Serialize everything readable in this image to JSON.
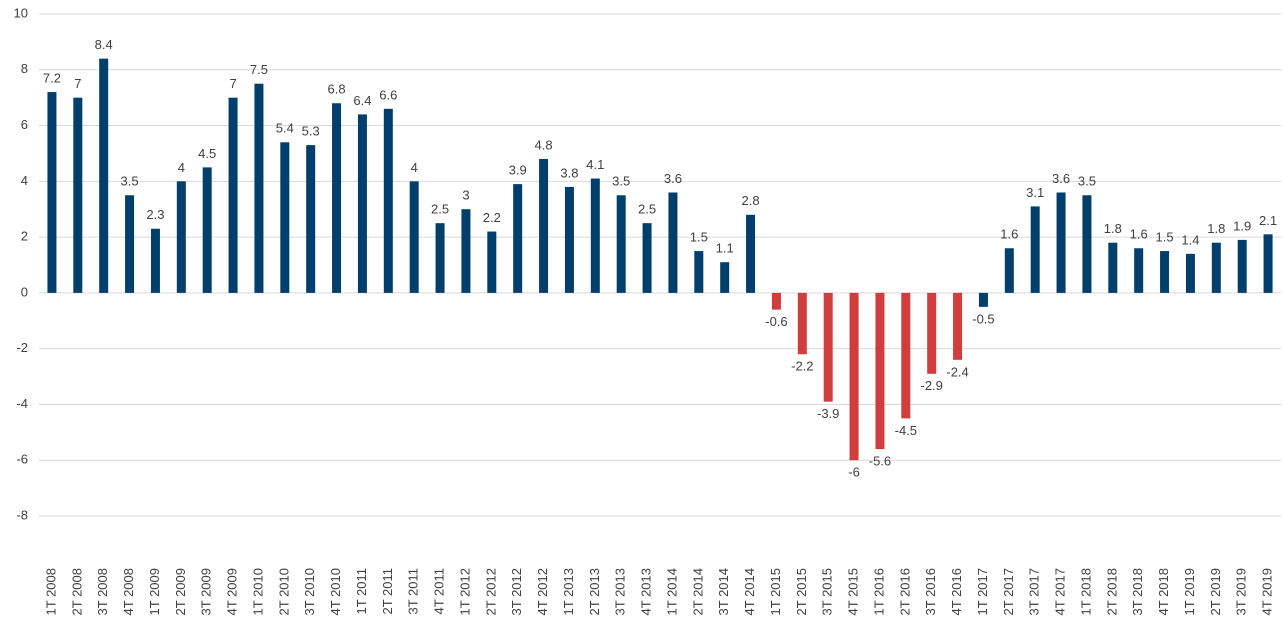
{
  "chart_data": {
    "type": "bar",
    "categories": [
      "1T 2008",
      "2T 2008",
      "3T 2008",
      "4T 2008",
      "1T 2009",
      "2T 2009",
      "3T 2009",
      "4T 2009",
      "1T 2010",
      "2T 2010",
      "3T 2010",
      "4T 2010",
      "1T 2011",
      "2T 2011",
      "3T 2011",
      "4T 2011",
      "1T 2012",
      "2T 2012",
      "3T 2012",
      "4T 2012",
      "1T 2013",
      "2T 2013",
      "3T 2013",
      "4T 2013",
      "1T 2014",
      "2T 2014",
      "3T 2014",
      "4T 2014",
      "1T 2015",
      "2T 2015",
      "3T 2015",
      "4T 2015",
      "1T 2016",
      "2T 2016",
      "3T 2016",
      "4T 2016",
      "1T 2017",
      "2T 2017",
      "3T 2017",
      "4T 2017",
      "1T 2018",
      "2T 2018",
      "3T 2018",
      "4T 2018",
      "1T 2019",
      "2T 2019",
      "3T 2019",
      "4T 2019"
    ],
    "values": [
      7.2,
      7,
      8.4,
      3.5,
      2.3,
      4,
      4.5,
      7,
      7.5,
      5.4,
      5.3,
      6.8,
      6.4,
      6.6,
      4,
      2.5,
      3,
      2.2,
      3.9,
      4.8,
      3.8,
      4.1,
      3.5,
      2.5,
      3.6,
      1.5,
      1.1,
      2.8,
      -0.6,
      -2.2,
      -3.9,
      -6,
      -5.6,
      -4.5,
      -2.9,
      -2.4,
      -0.5,
      1.6,
      3.1,
      3.6,
      3.5,
      1.8,
      1.6,
      1.5,
      1.4,
      1.8,
      1.9,
      2.1
    ],
    "colors": [
      "#003f6b",
      "#003f6b",
      "#003f6b",
      "#003f6b",
      "#003f6b",
      "#003f6b",
      "#003f6b",
      "#003f6b",
      "#003f6b",
      "#003f6b",
      "#003f6b",
      "#003f6b",
      "#003f6b",
      "#003f6b",
      "#003f6b",
      "#003f6b",
      "#003f6b",
      "#003f6b",
      "#003f6b",
      "#003f6b",
      "#003f6b",
      "#003f6b",
      "#003f6b",
      "#003f6b",
      "#003f6b",
      "#003f6b",
      "#003f6b",
      "#003f6b",
      "#d13c3c",
      "#d13c3c",
      "#d13c3c",
      "#d13c3c",
      "#d13c3c",
      "#d13c3c",
      "#d13c3c",
      "#d13c3c",
      "#003f6b",
      "#003f6b",
      "#003f6b",
      "#003f6b",
      "#003f6b",
      "#003f6b",
      "#003f6b",
      "#003f6b",
      "#003f6b",
      "#003f6b",
      "#003f6b",
      "#003f6b"
    ],
    "ylim": [
      -8,
      10
    ],
    "yticks": [
      -8,
      -6,
      -4,
      -2,
      0,
      2,
      4,
      6,
      8,
      10
    ],
    "grid": true
  }
}
